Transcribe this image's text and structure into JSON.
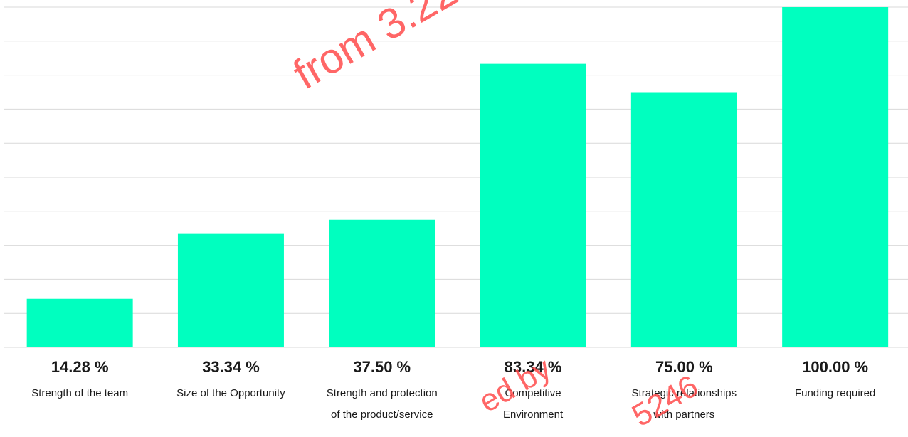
{
  "chart_data": {
    "type": "bar",
    "categories": [
      [
        "Strength of the team"
      ],
      [
        "Size of the Opportunity"
      ],
      [
        "Strength and protection",
        "of the product/service"
      ],
      [
        "Competitive",
        "Environment"
      ],
      [
        "Strategic relationships",
        "with partners"
      ],
      [
        "Funding required"
      ]
    ],
    "values": [
      14.28,
      33.34,
      37.5,
      83.34,
      75.0,
      100.0
    ],
    "value_labels": [
      "14.28 %",
      "33.34 %",
      "37.50 %",
      "83.34 %",
      "75.00 %",
      "100.00 %"
    ],
    "ylim": [
      0,
      100
    ],
    "grid": true,
    "bar_color": "#00ffbf",
    "grid_color": "#d9d9d9",
    "text_color": "#1a1a1a"
  },
  "watermarks": [
    "from 3.22",
    "ed by",
    "5246"
  ]
}
